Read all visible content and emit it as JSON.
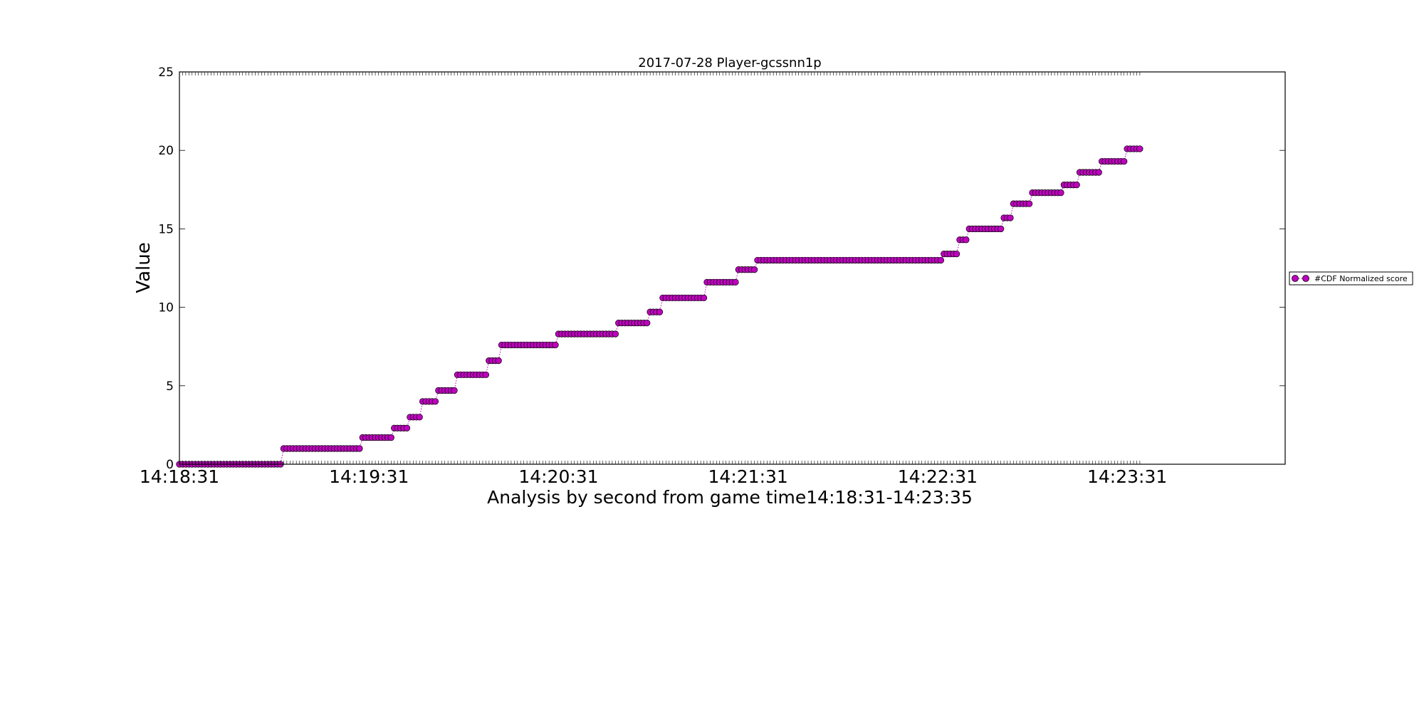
{
  "chart_data": {
    "type": "scatter",
    "title": "2017-07-28 Player-gcssnn1p",
    "xlabel": "Analysis by second from game time14:18:31-14:23:35",
    "ylabel": "Value",
    "xlim": [
      "14:18:31",
      "14:24:21"
    ],
    "ylim": [
      0,
      25
    ],
    "x_ticks": [
      "14:18:31",
      "14:19:31",
      "14:20:31",
      "14:21:31",
      "14:22:31",
      "14:23:31"
    ],
    "y_ticks": [
      "0",
      "5",
      "10",
      "15",
      "20",
      "25"
    ],
    "grid": false,
    "legend_position": "right",
    "marker_color": "#bf00bf",
    "line_color": "#bf00bf",
    "line_style": "dotted",
    "series": [
      {
        "name": "#CDF Normalized score",
        "steps": [
          {
            "from": "14:18:31",
            "to": "14:19:03",
            "value": 0
          },
          {
            "from": "14:19:03",
            "to": "14:19:00",
            "value": 0
          },
          {
            "from": "14:19:04",
            "to": "14:19:28",
            "value": 1.0
          },
          {
            "from": "14:19:29",
            "to": "14:19:38",
            "value": 1.7
          },
          {
            "from": "14:19:39",
            "to": "14:19:43",
            "value": 2.3
          },
          {
            "from": "14:19:44",
            "to": "14:19:47",
            "value": 3.0
          },
          {
            "from": "14:19:48",
            "to": "14:19:52",
            "value": 4.0
          },
          {
            "from": "14:19:53",
            "to": "14:19:58",
            "value": 4.7
          },
          {
            "from": "14:19:59",
            "to": "14:20:08",
            "value": 5.7
          },
          {
            "from": "14:20:09",
            "to": "14:20:12",
            "value": 6.6
          },
          {
            "from": "14:20:13",
            "to": "14:20:30",
            "value": 7.6
          },
          {
            "from": "14:20:31",
            "to": "14:20:49",
            "value": 8.3
          },
          {
            "from": "14:20:50",
            "to": "14:20:59",
            "value": 9.0
          },
          {
            "from": "14:21:00",
            "to": "14:21:03",
            "value": 9.7
          },
          {
            "from": "14:21:04",
            "to": "14:21:17",
            "value": 10.6
          },
          {
            "from": "14:21:18",
            "to": "14:21:27",
            "value": 11.6
          },
          {
            "from": "14:21:28",
            "to": "14:21:33",
            "value": 12.4
          },
          {
            "from": "14:21:34",
            "to": "14:22:32",
            "value": 13.0
          },
          {
            "from": "14:22:33",
            "to": "14:22:37",
            "value": 13.4
          },
          {
            "from": "14:22:38",
            "to": "14:22:40",
            "value": 14.3
          },
          {
            "from": "14:22:41",
            "to": "14:22:51",
            "value": 15.0
          },
          {
            "from": "14:22:52",
            "to": "14:22:54",
            "value": 15.7
          },
          {
            "from": "14:22:55",
            "to": "14:23:00",
            "value": 16.6
          },
          {
            "from": "14:23:01",
            "to": "14:23:10",
            "value": 17.3
          },
          {
            "from": "14:23:11",
            "to": "14:23:15",
            "value": 17.8
          },
          {
            "from": "14:23:16",
            "to": "14:23:22",
            "value": 18.6
          },
          {
            "from": "14:23:23",
            "to": "14:23:30",
            "value": 19.3
          },
          {
            "from": "14:23:31",
            "to": "14:23:35",
            "value": 20.1
          }
        ]
      }
    ]
  }
}
